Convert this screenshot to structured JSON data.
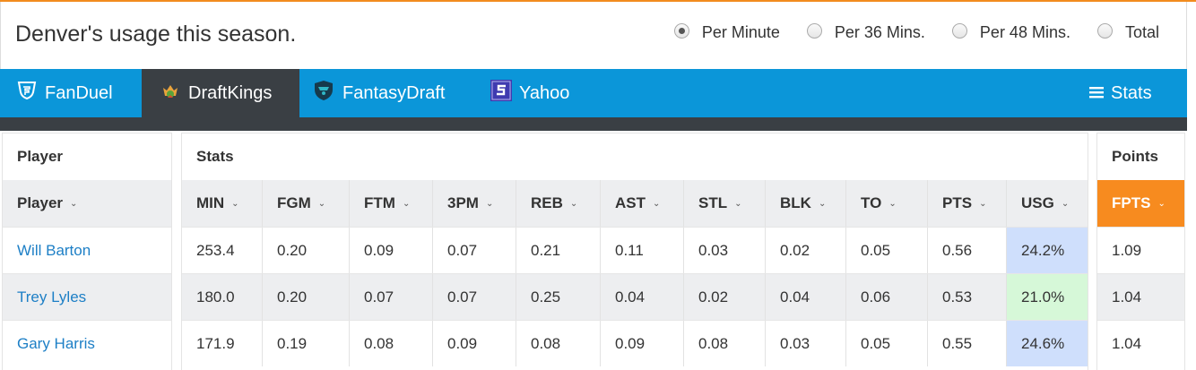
{
  "header": {
    "title": "Denver's usage this season.",
    "radio_options": [
      {
        "label": "Per Minute",
        "selected": true
      },
      {
        "label": "Per 36 Mins.",
        "selected": false
      },
      {
        "label": "Per 48 Mins.",
        "selected": false
      },
      {
        "label": "Total",
        "selected": false
      }
    ]
  },
  "tabs": {
    "items": [
      {
        "label": "FanDuel",
        "icon": "fanduel-shield-icon",
        "active": false
      },
      {
        "label": "DraftKings",
        "icon": "draftkings-crown-icon",
        "active": true
      },
      {
        "label": "FantasyDraft",
        "icon": "fantasydraft-shield-icon",
        "active": false
      },
      {
        "label": "Yahoo",
        "icon": "yahoo-s-icon",
        "active": false
      }
    ],
    "stats_label": "Stats",
    "stats_icon": "menu-icon"
  },
  "player_panel": {
    "heading": "Player",
    "column": "Player",
    "rows": [
      "Will Barton",
      "Trey Lyles",
      "Gary Harris"
    ]
  },
  "stats_panel": {
    "heading": "Stats",
    "columns": [
      "MIN",
      "FGM",
      "FTM",
      "3PM",
      "REB",
      "AST",
      "STL",
      "BLK",
      "TO",
      "PTS",
      "USG"
    ],
    "rows": [
      [
        "253.4",
        "0.20",
        "0.09",
        "0.07",
        "0.21",
        "0.11",
        "0.03",
        "0.02",
        "0.05",
        "0.56",
        "24.2%"
      ],
      [
        "180.0",
        "0.20",
        "0.07",
        "0.07",
        "0.25",
        "0.04",
        "0.02",
        "0.04",
        "0.06",
        "0.53",
        "21.0%"
      ],
      [
        "171.9",
        "0.19",
        "0.08",
        "0.09",
        "0.08",
        "0.09",
        "0.08",
        "0.03",
        "0.05",
        "0.55",
        "24.6%"
      ]
    ]
  },
  "points_panel": {
    "heading": "Points",
    "column": "FPTS",
    "rows": [
      "1.09",
      "1.04",
      "1.04"
    ]
  },
  "colors": {
    "accent_orange": "#f78b1f",
    "tab_blue": "#0b96d9",
    "tab_active": "#3a3f44",
    "link": "#1d7fc6",
    "usg_high": "#cfdffc",
    "usg_low": "#d6f8d8"
  }
}
